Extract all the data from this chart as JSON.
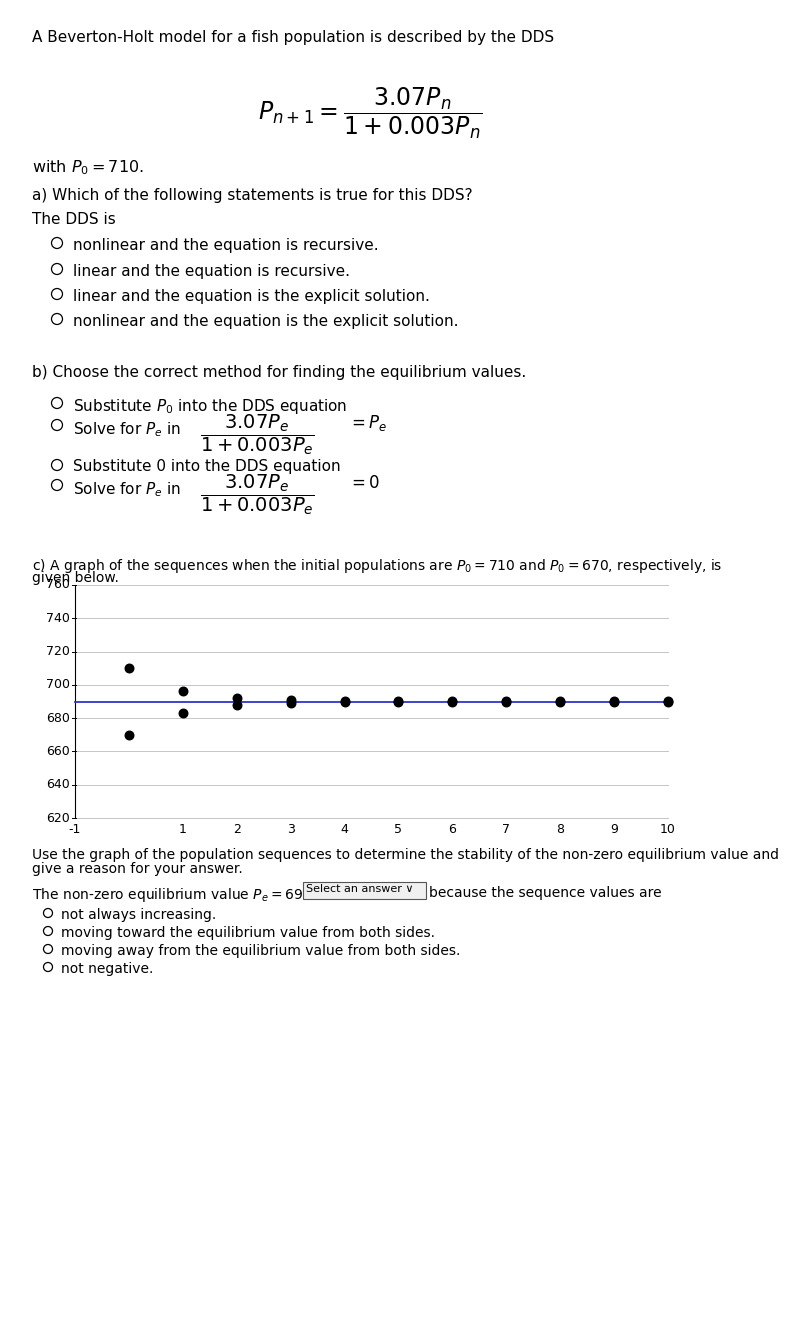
{
  "title_text": "A Beverton-Holt model for a fish population is described by the DDS",
  "initial_condition_math": "$P_0 = 710$",
  "part_a_label": "a) Which of the following statements is true for this DDS?",
  "part_a_intro": "The DDS is",
  "part_a_options": [
    "nonlinear and the equation is recursive.",
    "linear and the equation is recursive.",
    "linear and the equation is the explicit solution.",
    "nonlinear and the equation is the explicit solution."
  ],
  "part_b_label": "b) Choose the correct method for finding the equilibrium values.",
  "part_c_intro": "c) A graph of the sequences when the initial populations are $P_0 = 710$ and $P_0 = 670$, respectively, is",
  "part_c_intro2": "given below.",
  "equilibrium": 690,
  "seq1_P0": 710,
  "seq2_P0": 670,
  "n_steps": 11,
  "r": 3.07,
  "K_coeff": 0.003,
  "graph_xlim": [
    -1,
    10
  ],
  "graph_ylim": [
    620,
    760
  ],
  "graph_yticks": [
    620,
    640,
    660,
    680,
    700,
    720,
    740,
    760
  ],
  "graph_xticks": [
    -1,
    1,
    2,
    3,
    4,
    5,
    6,
    7,
    8,
    9,
    10
  ],
  "equilibrium_line_color": "#3333cc",
  "dot_color": "#000000",
  "part_d_label1": "Use the graph of the population sequences to determine the stability of the non-zero equilibrium value and",
  "part_d_label2": "give a reason for your answer.",
  "part_d_eq_text": "The non-zero equilibrium value $P_e = 690$ is",
  "dropdown_text": "Select an answer ∨",
  "part_d_suffix": "because the sequence values are",
  "part_d_options": [
    "not always increasing.",
    "moving toward the equilibrium value from both sides.",
    "moving away from the equilibrium value from both sides.",
    "not negative."
  ],
  "bg_color": "#ffffff",
  "text_color": "#000000"
}
